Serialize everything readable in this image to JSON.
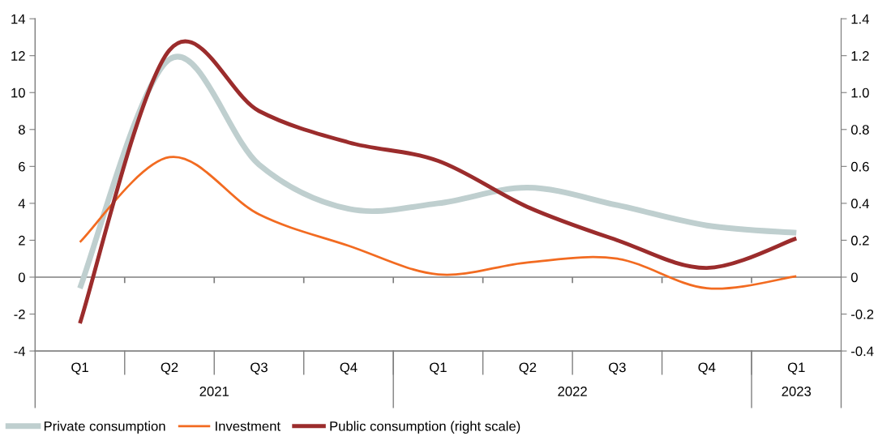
{
  "chart_data": {
    "type": "line",
    "categories": [
      "Q1",
      "Q2",
      "Q3",
      "Q4",
      "Q1",
      "Q2",
      "Q3",
      "Q4",
      "Q1"
    ],
    "series": [
      {
        "name": "Private consumption",
        "color": "#bfcfcf",
        "values": [
          -0.6,
          11.8,
          6.1,
          3.7,
          4.0,
          4.85,
          3.9,
          2.8,
          2.4
        ]
      },
      {
        "name": "Investment",
        "color": "#f26b21",
        "values": [
          1.9,
          6.5,
          3.4,
          1.7,
          0.15,
          0.8,
          1.0,
          -0.6,
          0.05
        ]
      },
      {
        "name": "Public consumption (right scale)",
        "color": "#9b2c2c",
        "axis": "y2",
        "values": [
          -0.25,
          1.23,
          0.9,
          0.73,
          0.63,
          0.38,
          0.2,
          0.05,
          0.21
        ]
      }
    ],
    "ylim": [
      -4,
      14
    ],
    "yticks": [
      -4,
      -2,
      0,
      2,
      4,
      6,
      8,
      10,
      12,
      14
    ],
    "y2lim": [
      -0.4,
      1.4
    ],
    "y2ticks": [
      -0.4,
      -0.2,
      0,
      0.2,
      0.4,
      0.6,
      0.8,
      {
        "value": 1.0,
        "label": "1.0"
      },
      1.2,
      1.4
    ],
    "ref_lines": [
      {
        "axis": "y",
        "value": 0,
        "color": "#7f7f7f"
      }
    ],
    "annotations": [
      "2021",
      "2022",
      "2023"
    ],
    "grid": false,
    "legend": "bottom left",
    "marker": "none",
    "line_style": "solid"
  }
}
